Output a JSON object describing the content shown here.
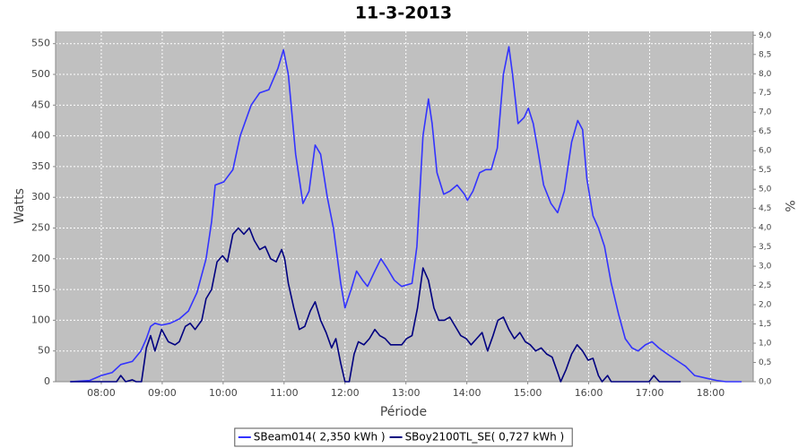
{
  "chart_data": {
    "type": "line",
    "title": "11-3-2013",
    "xlabel": "Période",
    "ylabel": "Watts",
    "y2label": "%",
    "xlim": [
      7.25,
      18.7
    ],
    "xticks": [
      {
        "value": 8,
        "label": "08:00"
      },
      {
        "value": 9,
        "label": "09:00"
      },
      {
        "value": 10,
        "label": "10:00"
      },
      {
        "value": 11,
        "label": "11:00"
      },
      {
        "value": 12,
        "label": "12:00"
      },
      {
        "value": 13,
        "label": "13:00"
      },
      {
        "value": 14,
        "label": "14:00"
      },
      {
        "value": 15,
        "label": "15:00"
      },
      {
        "value": 16,
        "label": "16:00"
      },
      {
        "value": 17,
        "label": "17:00"
      },
      {
        "value": 18,
        "label": "18:00"
      }
    ],
    "ylim": [
      0,
      570
    ],
    "yticks": [
      0,
      50,
      100,
      150,
      200,
      250,
      300,
      350,
      400,
      450,
      500,
      550
    ],
    "y2lim": [
      0,
      9.1
    ],
    "y2ticks": [
      {
        "value": 0,
        "label": "0,0"
      },
      {
        "value": 0.5,
        "label": "0,5"
      },
      {
        "value": 1,
        "label": "1,0"
      },
      {
        "value": 1.5,
        "label": "1,5"
      },
      {
        "value": 2,
        "label": "2,0"
      },
      {
        "value": 2.5,
        "label": "2,5"
      },
      {
        "value": 3,
        "label": "3,0"
      },
      {
        "value": 3.5,
        "label": "3,5"
      },
      {
        "value": 4,
        "label": "4,0"
      },
      {
        "value": 4.5,
        "label": "4,5"
      },
      {
        "value": 5,
        "label": "5,0"
      },
      {
        "value": 5.5,
        "label": "5,5"
      },
      {
        "value": 6,
        "label": "6,0"
      },
      {
        "value": 6.5,
        "label": "6,5"
      },
      {
        "value": 7,
        "label": "7,0"
      },
      {
        "value": 7.5,
        "label": "7,5"
      },
      {
        "value": 8,
        "label": "8,0"
      },
      {
        "value": 8.5,
        "label": "8,5"
      },
      {
        "value": 9,
        "label": "9,0"
      }
    ],
    "grid": true,
    "background": "#c0c0c0",
    "legend": "bottom",
    "series": [
      {
        "name": "SBeam014( 2,350 kWh )",
        "color": "#3333ff",
        "x": [
          7.49,
          7.81,
          8.0,
          8.18,
          8.32,
          8.51,
          8.65,
          8.74,
          8.81,
          8.88,
          8.99,
          9.13,
          9.28,
          9.43,
          9.57,
          9.72,
          9.81,
          9.87,
          10.01,
          10.16,
          10.28,
          10.46,
          10.6,
          10.75,
          10.9,
          10.99,
          11.07,
          11.19,
          11.31,
          11.41,
          11.51,
          11.6,
          11.71,
          11.81,
          11.93,
          12.0,
          12.1,
          12.19,
          12.29,
          12.37,
          12.49,
          12.59,
          12.69,
          12.81,
          12.93,
          13.1,
          13.18,
          13.28,
          13.37,
          13.43,
          13.51,
          13.62,
          13.72,
          13.84,
          13.96,
          14.01,
          14.1,
          14.21,
          14.31,
          14.4,
          14.5,
          14.6,
          14.69,
          14.75,
          14.84,
          14.94,
          15.01,
          15.09,
          15.16,
          15.26,
          15.38,
          15.49,
          15.6,
          15.72,
          15.82,
          15.9,
          15.97,
          16.07,
          16.16,
          16.26,
          16.37,
          16.49,
          16.6,
          16.71,
          16.81,
          16.93,
          17.04,
          17.15,
          17.29,
          17.44,
          17.59,
          17.74,
          17.96,
          18.1,
          18.25,
          18.51
        ],
        "values": [
          0,
          2,
          10,
          15,
          28,
          33,
          50,
          70,
          90,
          95,
          92,
          95,
          102,
          115,
          145,
          200,
          260,
          320,
          325,
          345,
          400,
          450,
          470,
          475,
          510,
          540,
          500,
          370,
          290,
          310,
          385,
          370,
          300,
          250,
          160,
          120,
          150,
          180,
          165,
          155,
          180,
          200,
          185,
          165,
          155,
          160,
          220,
          400,
          460,
          420,
          340,
          305,
          310,
          320,
          305,
          295,
          310,
          340,
          345,
          345,
          380,
          500,
          545,
          500,
          420,
          430,
          445,
          420,
          380,
          320,
          290,
          275,
          310,
          390,
          425,
          410,
          330,
          270,
          250,
          220,
          160,
          110,
          70,
          55,
          50,
          60,
          65,
          55,
          45,
          35,
          25,
          10,
          5,
          2,
          0,
          0
        ]
      },
      {
        "name": "SBoy2100TL_SE( 0,727 kWh )",
        "color": "#000080",
        "x": [
          7.49,
          8.25,
          8.32,
          8.4,
          8.51,
          8.57,
          8.66,
          8.74,
          8.81,
          8.88,
          8.99,
          9.1,
          9.21,
          9.28,
          9.38,
          9.46,
          9.54,
          9.65,
          9.72,
          9.81,
          9.9,
          9.99,
          10.07,
          10.16,
          10.25,
          10.34,
          10.43,
          10.51,
          10.6,
          10.69,
          10.78,
          10.87,
          10.96,
          11.01,
          11.07,
          11.16,
          11.25,
          11.34,
          11.43,
          11.51,
          11.6,
          11.69,
          11.78,
          11.85,
          11.93,
          12.0,
          12.07,
          12.15,
          12.22,
          12.31,
          12.4,
          12.49,
          12.57,
          12.66,
          12.75,
          12.84,
          12.93,
          13.01,
          13.1,
          13.19,
          13.28,
          13.37,
          13.46,
          13.54,
          13.63,
          13.72,
          13.81,
          13.9,
          13.99,
          14.07,
          14.16,
          14.25,
          14.34,
          14.43,
          14.51,
          14.6,
          14.69,
          14.78,
          14.87,
          14.96,
          15.04,
          15.13,
          15.22,
          15.31,
          15.4,
          15.49,
          15.54,
          15.63,
          15.72,
          15.81,
          15.9,
          15.99,
          16.07,
          16.16,
          16.22,
          16.31,
          16.37,
          16.49,
          16.99,
          17.07,
          17.16,
          17.51
        ],
        "values": [
          0,
          0,
          10,
          0,
          3,
          0,
          0,
          55,
          75,
          50,
          85,
          65,
          60,
          65,
          90,
          95,
          85,
          100,
          135,
          150,
          195,
          205,
          195,
          240,
          250,
          240,
          250,
          230,
          215,
          220,
          200,
          195,
          215,
          200,
          160,
          120,
          85,
          90,
          115,
          130,
          100,
          80,
          55,
          70,
          30,
          0,
          0,
          45,
          65,
          60,
          70,
          85,
          75,
          70,
          60,
          60,
          60,
          70,
          75,
          120,
          185,
          165,
          120,
          100,
          100,
          105,
          90,
          75,
          70,
          60,
          70,
          80,
          50,
          75,
          100,
          105,
          85,
          70,
          80,
          65,
          60,
          50,
          55,
          45,
          40,
          15,
          0,
          20,
          45,
          60,
          50,
          35,
          38,
          10,
          0,
          10,
          0,
          0,
          0,
          10,
          0,
          0
        ]
      }
    ]
  }
}
